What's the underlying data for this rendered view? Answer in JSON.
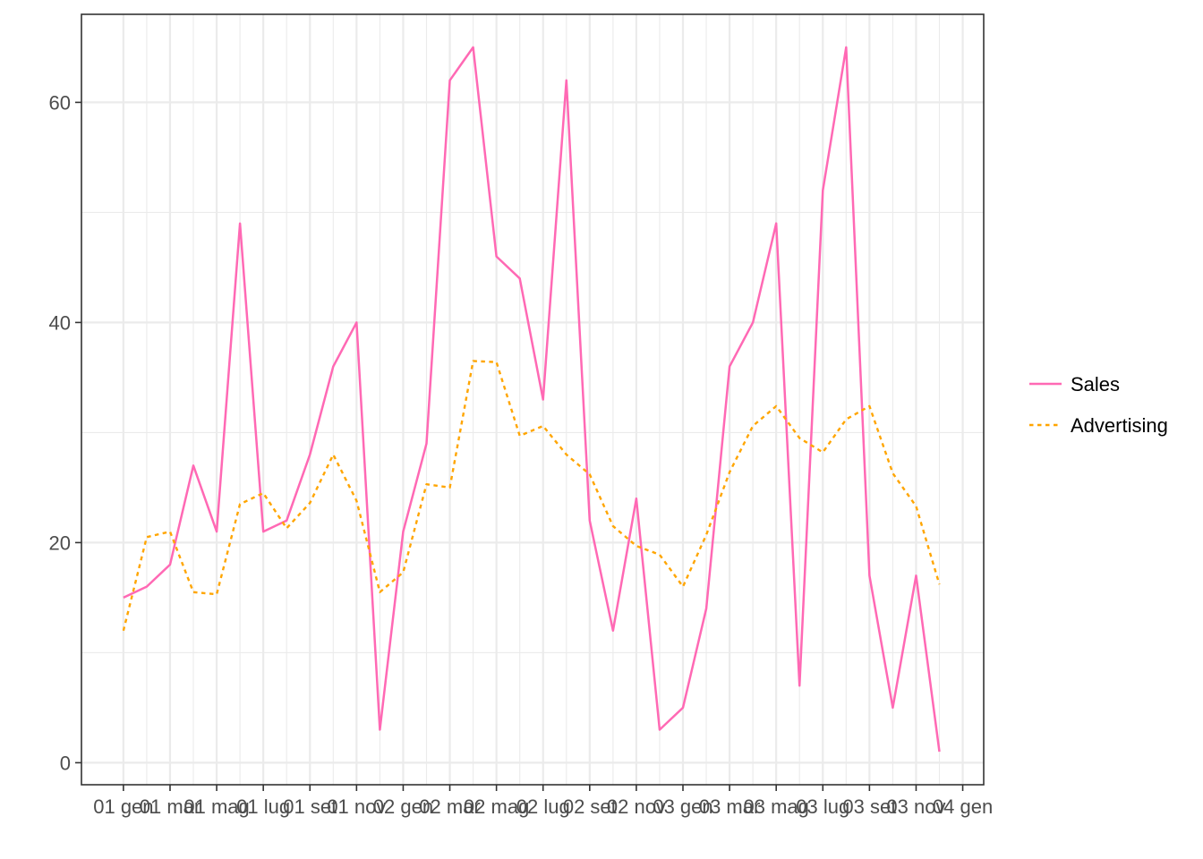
{
  "chart_data": {
    "type": "line",
    "x": [
      "2001-01",
      "2001-02",
      "2001-03",
      "2001-04",
      "2001-05",
      "2001-06",
      "2001-07",
      "2001-08",
      "2001-09",
      "2001-10",
      "2001-11",
      "2001-12",
      "2002-01",
      "2002-02",
      "2002-03",
      "2002-04",
      "2002-05",
      "2002-06",
      "2002-07",
      "2002-08",
      "2002-09",
      "2002-10",
      "2002-11",
      "2002-12",
      "2003-01",
      "2003-02",
      "2003-03",
      "2003-04",
      "2003-05",
      "2003-06",
      "2003-07",
      "2003-08",
      "2003-09",
      "2003-10",
      "2003-11",
      "2003-12"
    ],
    "x_tick_labels": [
      "01 gen",
      "01 mar",
      "01 mag",
      "01 lug",
      "01 set",
      "01 nov",
      "02 gen",
      "02 mar",
      "02 mag",
      "02 lug",
      "02 set",
      "02 nov",
      "03 gen",
      "03 mar",
      "03 mag",
      "03 lug",
      "03 set",
      "03 nov",
      "04 gen"
    ],
    "y_ticks": [
      0,
      20,
      40,
      60
    ],
    "ylim": [
      -2,
      68
    ],
    "grid": true,
    "legend_position": "right",
    "series": [
      {
        "name": "Sales",
        "color": "#ff69b4",
        "dash": "solid",
        "values": [
          15,
          16,
          18,
          27,
          21,
          49,
          21,
          22,
          28,
          36,
          40,
          3,
          21,
          29,
          62,
          65,
          46,
          44,
          33,
          62,
          22,
          12,
          24,
          3,
          5,
          14,
          36,
          40,
          49,
          7,
          52,
          65,
          17,
          5,
          17,
          1
        ]
      },
      {
        "name": "Advertising",
        "color": "#ffa500",
        "dash": "dotted",
        "values": [
          12,
          20.5,
          21,
          15.5,
          15.3,
          23.5,
          24.5,
          21.3,
          23.6,
          28,
          23.8,
          15.5,
          17.3,
          25.3,
          25,
          36.5,
          36.4,
          29.7,
          30.6,
          28,
          26.2,
          21.5,
          19.7,
          18.9,
          16,
          20.7,
          26.4,
          30.6,
          32.4,
          29.5,
          28.2,
          31.2,
          32.4,
          26.3,
          23.3,
          16.2
        ]
      }
    ]
  }
}
